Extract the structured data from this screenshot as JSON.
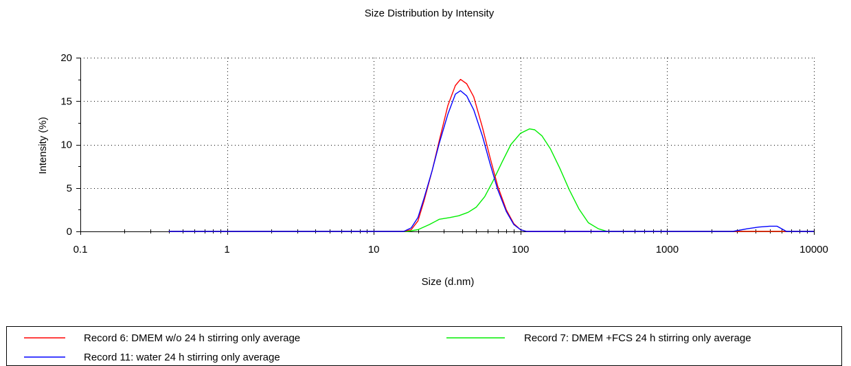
{
  "chart_data": {
    "type": "line",
    "title": "Size Distribution by Intensity",
    "xlabel": "Size (d.nm)",
    "ylabel": "Intensity (%)",
    "xscale": "log",
    "xlim": [
      0.1,
      10000
    ],
    "ylim": [
      0,
      20
    ],
    "xticks": [
      0.1,
      1,
      10,
      100,
      1000,
      10000
    ],
    "xtick_labels": [
      "0.1",
      "1",
      "10",
      "100",
      "1000",
      "10000"
    ],
    "yticks": [
      0,
      5,
      10,
      15,
      20
    ],
    "ytick_labels": [
      "0",
      "5",
      "10",
      "15",
      "20"
    ],
    "grid": true,
    "legend_position": "bottom",
    "series": [
      {
        "name": "Record 6: DMEM w/o 24 h stirring only average",
        "color": "#ff0000",
        "x": [
          0.4,
          16,
          18,
          20,
          22,
          25,
          28,
          32,
          36,
          39,
          43,
          48,
          55,
          62,
          70,
          80,
          90,
          100,
          110,
          10000
        ],
        "y": [
          0,
          0,
          0.2,
          1.2,
          3.5,
          7.0,
          10.5,
          14.5,
          16.8,
          17.5,
          17.0,
          15.5,
          12.0,
          8.5,
          5.2,
          2.5,
          0.9,
          0.2,
          0,
          0
        ]
      },
      {
        "name": "Record 11: water 24 h stirring only average",
        "color": "#0000ff",
        "x": [
          0.4,
          16,
          18,
          20,
          22,
          25,
          28,
          32,
          36,
          39,
          43,
          48,
          55,
          62,
          70,
          80,
          90,
          100,
          110,
          2800,
          3500,
          4200,
          5000,
          5600,
          6500,
          10000
        ],
        "y": [
          0,
          0,
          0.4,
          1.6,
          3.8,
          7.0,
          10.2,
          13.5,
          15.8,
          16.2,
          15.6,
          14.0,
          11.0,
          7.8,
          4.8,
          2.3,
          0.8,
          0.2,
          0,
          0,
          0.3,
          0.5,
          0.6,
          0.6,
          0,
          0
        ]
      },
      {
        "name": "Record 7: DMEM +FCS 24 h stirring only average",
        "color": "#00ee00",
        "x": [
          0.4,
          17,
          20,
          24,
          28,
          33,
          38,
          44,
          50,
          57,
          65,
          75,
          86,
          100,
          115,
          125,
          140,
          160,
          185,
          215,
          250,
          290,
          340,
          390,
          10000
        ],
        "y": [
          0,
          0,
          0.2,
          0.8,
          1.4,
          1.6,
          1.8,
          2.2,
          2.8,
          4.0,
          5.8,
          8.0,
          10.0,
          11.3,
          11.8,
          11.7,
          11.0,
          9.5,
          7.3,
          4.8,
          2.6,
          1.0,
          0.3,
          0,
          0
        ]
      }
    ]
  }
}
